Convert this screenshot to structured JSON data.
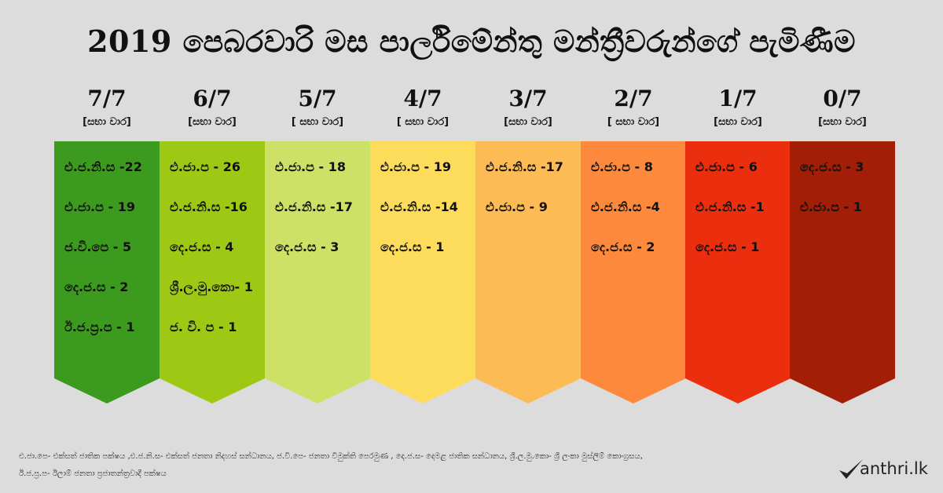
{
  "title": "2019 පෙබරවාරි මස පාර්ලිමේන්තු මන්ත්‍රීවරුන්ගේ පැමිණීම",
  "columns": [
    {
      "fraction": "7/7",
      "sub": "[සභා වාර]",
      "color": "#3c9a1e",
      "items": [
        "එ.ජ.නි.ස -22",
        "එ.ජා.ප - 19",
        "ජ.වි.පෙ - 5",
        "දෙ.ජ.ස  -  2",
        "ඊ.ජ.ප්‍ර.ප - 1"
      ]
    },
    {
      "fraction": "6/7",
      "sub": "[සභා වාර]",
      "color": "#9dc915",
      "items": [
        "එ.ජා.ප - 26",
        "එ.ජ.නි.ස -16",
        "දෙ.ජ.ස -  4",
        "ශ්‍රී.ල.මු.කො- 1",
        "ජ. වි. ප - 1"
      ]
    },
    {
      "fraction": "5/7",
      "sub": "[ සභා වාර]",
      "color": "#cce166",
      "items": [
        "එ.ජා.ප - 18",
        "එ.ජ.නි.ස -17",
        "දෙ.ජ.ස -  3"
      ]
    },
    {
      "fraction": "4/7",
      "sub": "[ සභා වාර]",
      "color": "#fddc5c",
      "items": [
        "එ.ජා.ප - 19",
        "එ.ජ.නි.ස -14",
        "දෙ.ජ.ස - 1"
      ]
    },
    {
      "fraction": "3/7",
      "sub": "[සභා වාර]",
      "color": "#fdbb55",
      "items": [
        "එ.ජ.නි.ස -17",
        "එ.ජා.ප - 9"
      ]
    },
    {
      "fraction": "2/7",
      "sub": "[ සභා වාර]",
      "color": "#fd8a3c",
      "items": [
        "එ.ජා.ප - 8",
        "එ.ජ.නි.ස -4",
        "දෙ.ජ.ස -  2"
      ]
    },
    {
      "fraction": "1/7",
      "sub": "[සභා වාර]",
      "color": "#eb2e0d",
      "items": [
        "එ.ජා.ප - 6",
        "එ.ජ.නි.ස -1",
        "දෙ.ජ.ස -  1"
      ]
    },
    {
      "fraction": "0/7",
      "sub": "[සභා වාර]",
      "color": "#a31e06",
      "items": [
        "දෙ.ජ.ස - 3",
        "එ.ජා.ප - 1"
      ]
    }
  ],
  "legend_line1": "එ.ජා.පෙ- එක්සත් ජාතික පක්ෂය ,එ.ජ.නි.ස- එක්සත් ජනතා නිදහස් සන්ධානය, ජ.වි.පෙ- ජනතා විමුක්ති පෙරමුණ , දෙ.ජ.ස- දෙමළ ජාතික සන්ධානය, ශ්‍රී.ල.මු.කො- ශ්‍රී ලංකා මුස්ලිම් කොංග්‍රසය,",
  "legend_line2": "ඊ.ජ.ප්‍ර.ප- ඊලාම් ජනතා ප්‍රජාතන්ත්‍රවාදී පක්ෂය",
  "logo": {
    "text": "anthri.lk",
    "color": "#222222"
  }
}
